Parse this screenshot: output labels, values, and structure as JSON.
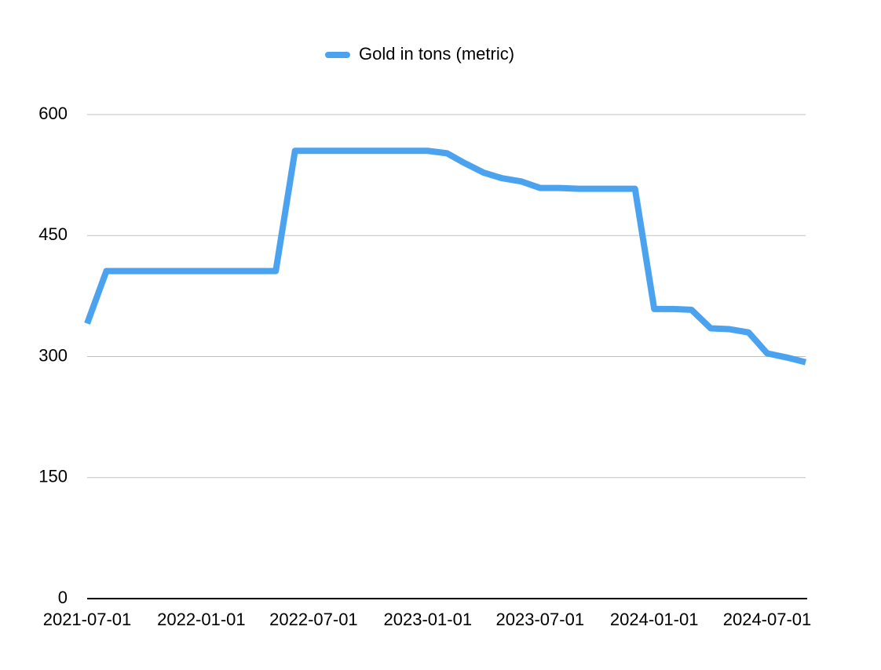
{
  "chart_data": {
    "type": "line",
    "x": [
      "2021-07-01",
      "2021-08-01",
      "2021-09-01",
      "2021-10-01",
      "2021-11-01",
      "2021-12-01",
      "2022-01-01",
      "2022-02-01",
      "2022-03-01",
      "2022-04-01",
      "2022-05-01",
      "2022-06-01",
      "2022-07-01",
      "2022-08-01",
      "2022-09-01",
      "2022-10-01",
      "2022-11-01",
      "2022-12-01",
      "2023-01-01",
      "2023-02-01",
      "2023-03-01",
      "2023-04-01",
      "2023-05-01",
      "2023-06-01",
      "2023-07-01",
      "2023-08-01",
      "2023-09-01",
      "2023-10-01",
      "2023-11-01",
      "2023-12-01",
      "2024-01-01",
      "2024-02-01",
      "2024-03-01",
      "2024-04-01",
      "2024-05-01",
      "2024-06-01",
      "2024-07-01",
      "2024-08-01",
      "2024-09-01"
    ],
    "series": [
      {
        "name": "Gold in tons (metric)",
        "color": "#4ba3f0",
        "values": [
          341,
          406,
          406,
          406,
          406,
          406,
          406,
          406,
          406,
          406,
          406,
          555,
          555,
          555,
          555,
          555,
          555,
          555,
          555,
          552,
          540,
          528,
          521,
          517,
          509,
          509,
          508,
          508,
          508,
          508,
          359,
          359,
          358,
          335,
          334,
          330,
          304,
          299,
          293
        ]
      }
    ],
    "xlim": [
      "2021-07-01",
      "2024-09-01"
    ],
    "xticks": [
      "2021-07-01",
      "2022-01-01",
      "2022-07-01",
      "2023-01-01",
      "2023-07-01",
      "2024-01-01",
      "2024-07-01"
    ],
    "ylim": [
      0,
      600
    ],
    "yticks": [
      0,
      150,
      300,
      450,
      600
    ],
    "grid": true,
    "legend": "top"
  }
}
